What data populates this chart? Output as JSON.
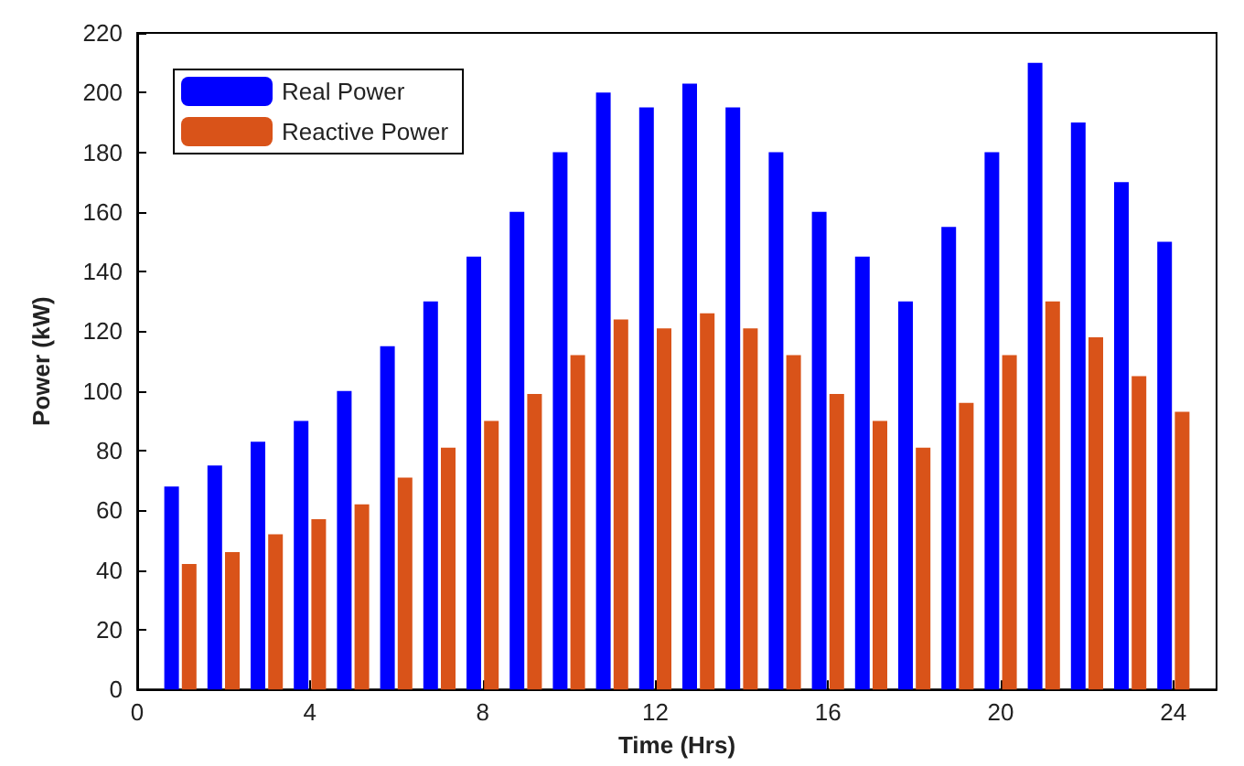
{
  "chart_data": {
    "type": "bar",
    "xlabel": "Time (Hrs)",
    "ylabel": "Power (kW)",
    "x": [
      1,
      2,
      3,
      4,
      5,
      6,
      7,
      8,
      9,
      10,
      11,
      12,
      13,
      14,
      15,
      16,
      17,
      18,
      19,
      20,
      21,
      22,
      23,
      24
    ],
    "series": [
      {
        "name": "Real Power",
        "color": "#0000ff",
        "values": [
          68,
          75,
          83,
          90,
          100,
          115,
          130,
          145,
          160,
          180,
          200,
          195,
          203,
          195,
          180,
          160,
          145,
          130,
          155,
          180,
          210,
          190,
          170,
          150
        ]
      },
      {
        "name": "Reactive Power",
        "color": "#d95319",
        "values": [
          42,
          46,
          52,
          57,
          62,
          71,
          81,
          90,
          99,
          112,
          124,
          121,
          126,
          121,
          112,
          99,
          90,
          81,
          96,
          112,
          130,
          118,
          105,
          93
        ]
      }
    ],
    "xlim": [
      0,
      25
    ],
    "xticks": [
      0,
      4,
      8,
      12,
      16,
      20,
      24
    ],
    "ylim": [
      0,
      220
    ],
    "yticks": [
      0,
      20,
      40,
      60,
      80,
      100,
      120,
      140,
      160,
      180,
      200,
      220
    ],
    "grid": false,
    "legend": "top left"
  }
}
